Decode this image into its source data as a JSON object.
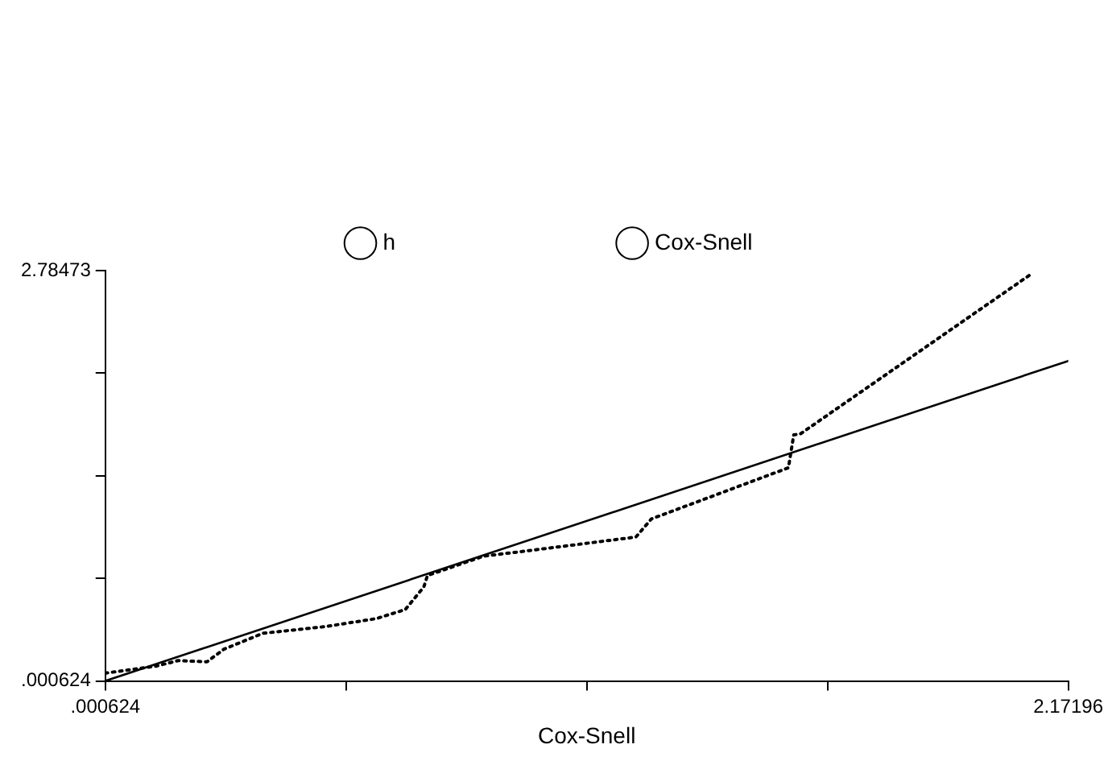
{
  "chart_data": {
    "type": "line",
    "xlabel": "Cox-Snell",
    "legend": "top",
    "grid": false,
    "marker": "none",
    "xlim": [
      0.000624,
      2.17196
    ],
    "ylim": [
      0.000624,
      2.78473
    ],
    "xticks": [
      {
        "value": 0.000624,
        "label": ".000624"
      },
      {
        "value": 0.543458,
        "label": null
      },
      {
        "value": 1.086292,
        "label": null
      },
      {
        "value": 1.629126,
        "label": null
      },
      2.17196
    ],
    "yticks": [
      {
        "value": 0.000624,
        "label": ".000624"
      },
      {
        "value": 0.696651,
        "label": null
      },
      {
        "value": 1.392677,
        "label": null
      },
      {
        "value": 2.088704,
        "label": null
      },
      2.78473
    ],
    "series": [
      {
        "name": "h",
        "color": "#000000",
        "line_style": "dotted",
        "x": [
          0.000624,
          0.115,
          0.165,
          0.23,
          0.268,
          0.356,
          0.498,
          0.612,
          0.677,
          0.719,
          0.727,
          0.853,
          0.956,
          1.197,
          1.232,
          1.541,
          1.553,
          1.568,
          2.092
        ],
        "values": [
          0.054,
          0.101,
          0.139,
          0.131,
          0.216,
          0.324,
          0.37,
          0.424,
          0.485,
          0.639,
          0.716,
          0.847,
          0.885,
          0.977,
          1.1,
          1.447,
          1.67,
          1.677,
          2.769
        ]
      },
      {
        "name": "Cox-Snell",
        "color": "#000000",
        "line_style": "solid",
        "x": [
          0.000624,
          2.17196
        ],
        "values": [
          0.000624,
          2.17196
        ]
      }
    ]
  }
}
